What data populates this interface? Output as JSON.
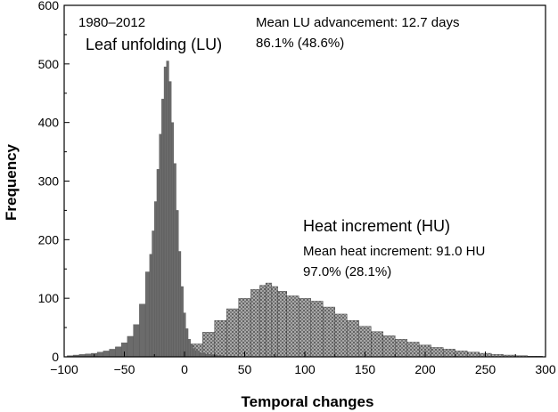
{
  "chart_data": {
    "type": "bar",
    "xlabel": "Temporal changes",
    "ylabel": "Frequency",
    "xlim": [
      -100,
      300
    ],
    "ylim": [
      0,
      600
    ],
    "x_ticks": [
      -100,
      -50,
      0,
      50,
      100,
      150,
      200,
      250,
      300
    ],
    "x_tick_labels": [
      "−100",
      "−50",
      "0",
      "50",
      "100",
      "150",
      "200",
      "250",
      "300"
    ],
    "y_ticks": [
      0,
      100,
      200,
      300,
      400,
      500,
      600
    ],
    "y_tick_labels": [
      "0",
      "100",
      "200",
      "300",
      "400",
      "500",
      "600"
    ],
    "grid": false,
    "annotations": {
      "period": "1980–2012",
      "lu_mean": "Mean LU advancement: 12.7 days",
      "lu_pct": "86.1% (48.6%)",
      "hu_mean": "Mean heat increment: 91.0 HU",
      "hu_pct": "97.0% (28.1%)"
    },
    "series": [
      {
        "name": "Leaf unfolding (LU)",
        "color": "#6b6b6b",
        "pattern": "solid",
        "x": [
          -95,
          -90,
          -85,
          -80,
          -75,
          -70,
          -65,
          -60,
          -55,
          -50,
          -45,
          -40,
          -35,
          -30,
          -28,
          -26,
          -24,
          -22,
          -20,
          -18,
          -16,
          -14,
          -12,
          -10,
          -8,
          -6,
          -4,
          -2,
          0,
          2,
          4,
          6,
          8,
          10,
          15,
          20,
          25,
          30,
          35,
          40
        ],
        "values": [
          2,
          3,
          4,
          5,
          6,
          8,
          10,
          13,
          17,
          24,
          35,
          55,
          90,
          145,
          175,
          215,
          265,
          320,
          380,
          440,
          495,
          505,
          470,
          400,
          330,
          250,
          180,
          120,
          75,
          48,
          30,
          20,
          14,
          10,
          6,
          4,
          3,
          2,
          1,
          1
        ]
      },
      {
        "name": "Heat increment (HU)",
        "color": "#9a9a9a",
        "pattern": "dotted",
        "x": [
          -20,
          -10,
          0,
          10,
          20,
          30,
          40,
          50,
          60,
          65,
          70,
          75,
          80,
          90,
          100,
          110,
          120,
          130,
          140,
          150,
          160,
          170,
          180,
          190,
          200,
          210,
          220,
          230,
          240,
          250,
          260,
          270,
          280,
          290,
          295
        ],
        "values": [
          2,
          5,
          10,
          22,
          42,
          62,
          82,
          100,
          115,
          122,
          126,
          120,
          112,
          104,
          100,
          95,
          85,
          73,
          62,
          52,
          43,
          36,
          30,
          25,
          20,
          16,
          13,
          10,
          8,
          6,
          4,
          3,
          2,
          1,
          1
        ]
      }
    ]
  }
}
